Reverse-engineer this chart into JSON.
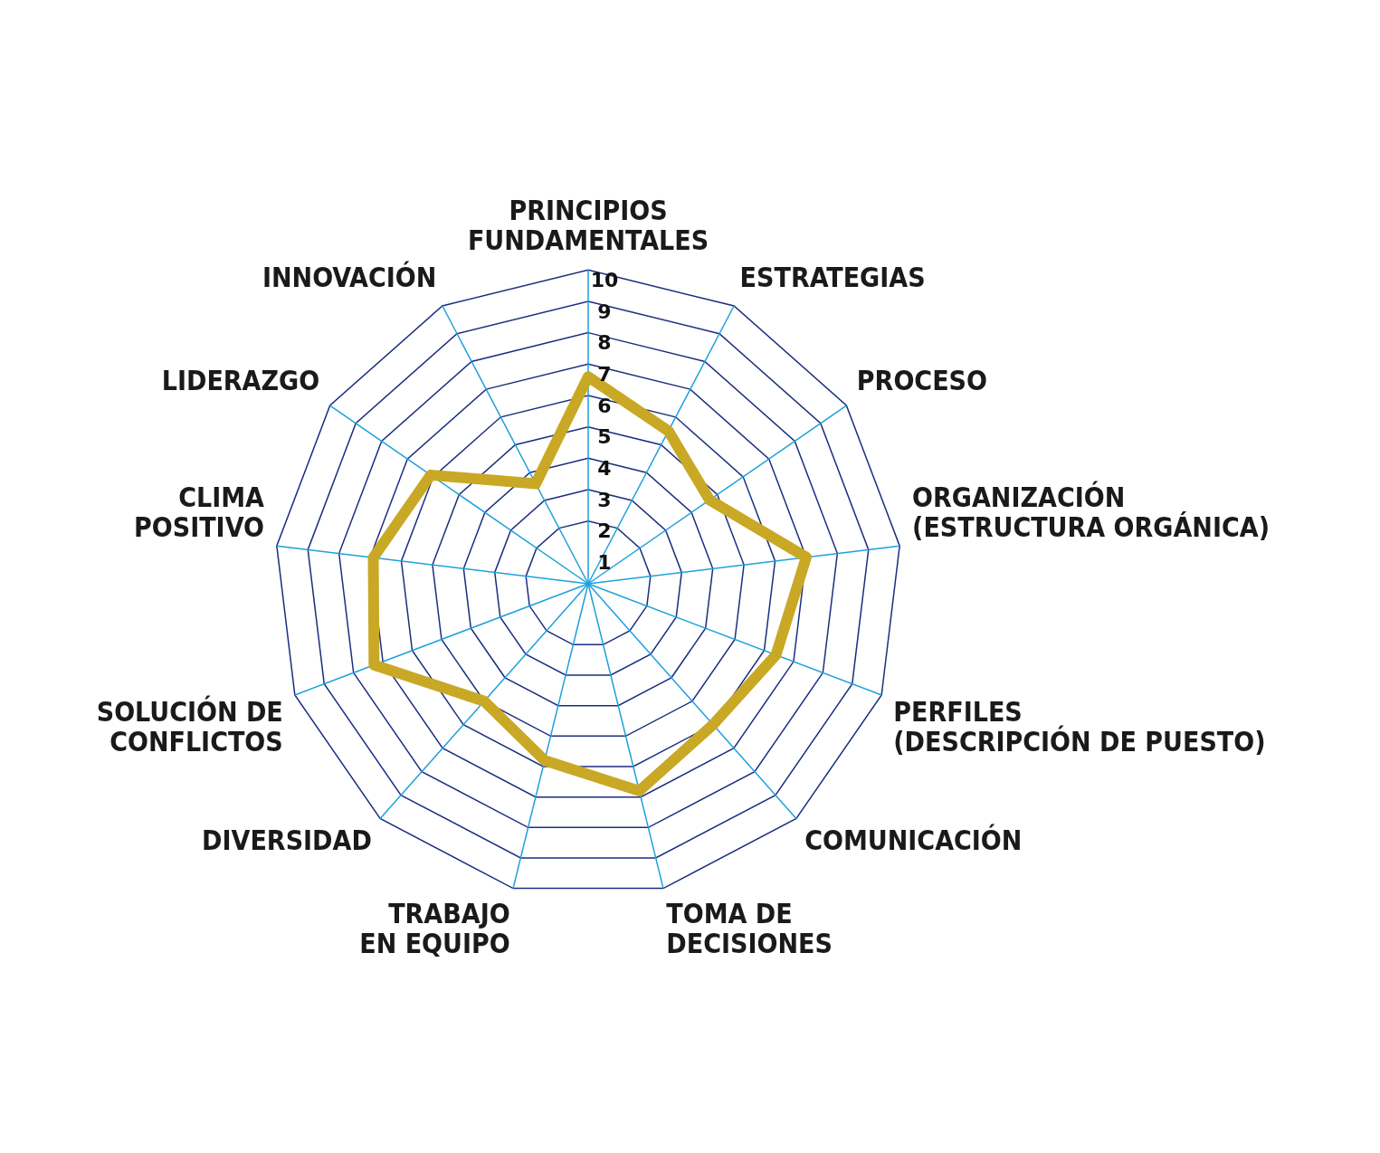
{
  "chart_data": {
    "type": "radar",
    "categories": [
      "PRINCIPIOS\nFUNDAMENTALES",
      "ESTRATEGIAS",
      "PROCESO",
      "ORGANIZACIÓN\n(ESTRUCTURA ORGÁNICA)",
      "PERFILES\n(DESCRIPCIÓN DE PUESTO)",
      "COMUNICACIÓN",
      "TOMA DE\nDECISIONES",
      "TRABAJO\nEN EQUIPO",
      "DIVERSIDAD",
      "SOLUCIÓN DE\nCONFLICTOS",
      "CLIMA\nPOSITIVO",
      "LIDERAZGO",
      "INNOVACIÓN"
    ],
    "series": [
      {
        "color": "#c9a825",
        "values": [
          6.6,
          5.5,
          4.7,
          7.0,
          6.4,
          6.0,
          6.8,
          5.8,
          5.0,
          7.3,
          6.9,
          6.1,
          3.6
        ]
      }
    ],
    "ylim": [
      0,
      10
    ],
    "yticks": [
      1,
      2,
      3,
      4,
      5,
      6,
      7,
      8,
      9,
      10
    ],
    "grid": true,
    "legend": false,
    "marker": "none",
    "line_style": "solid"
  }
}
